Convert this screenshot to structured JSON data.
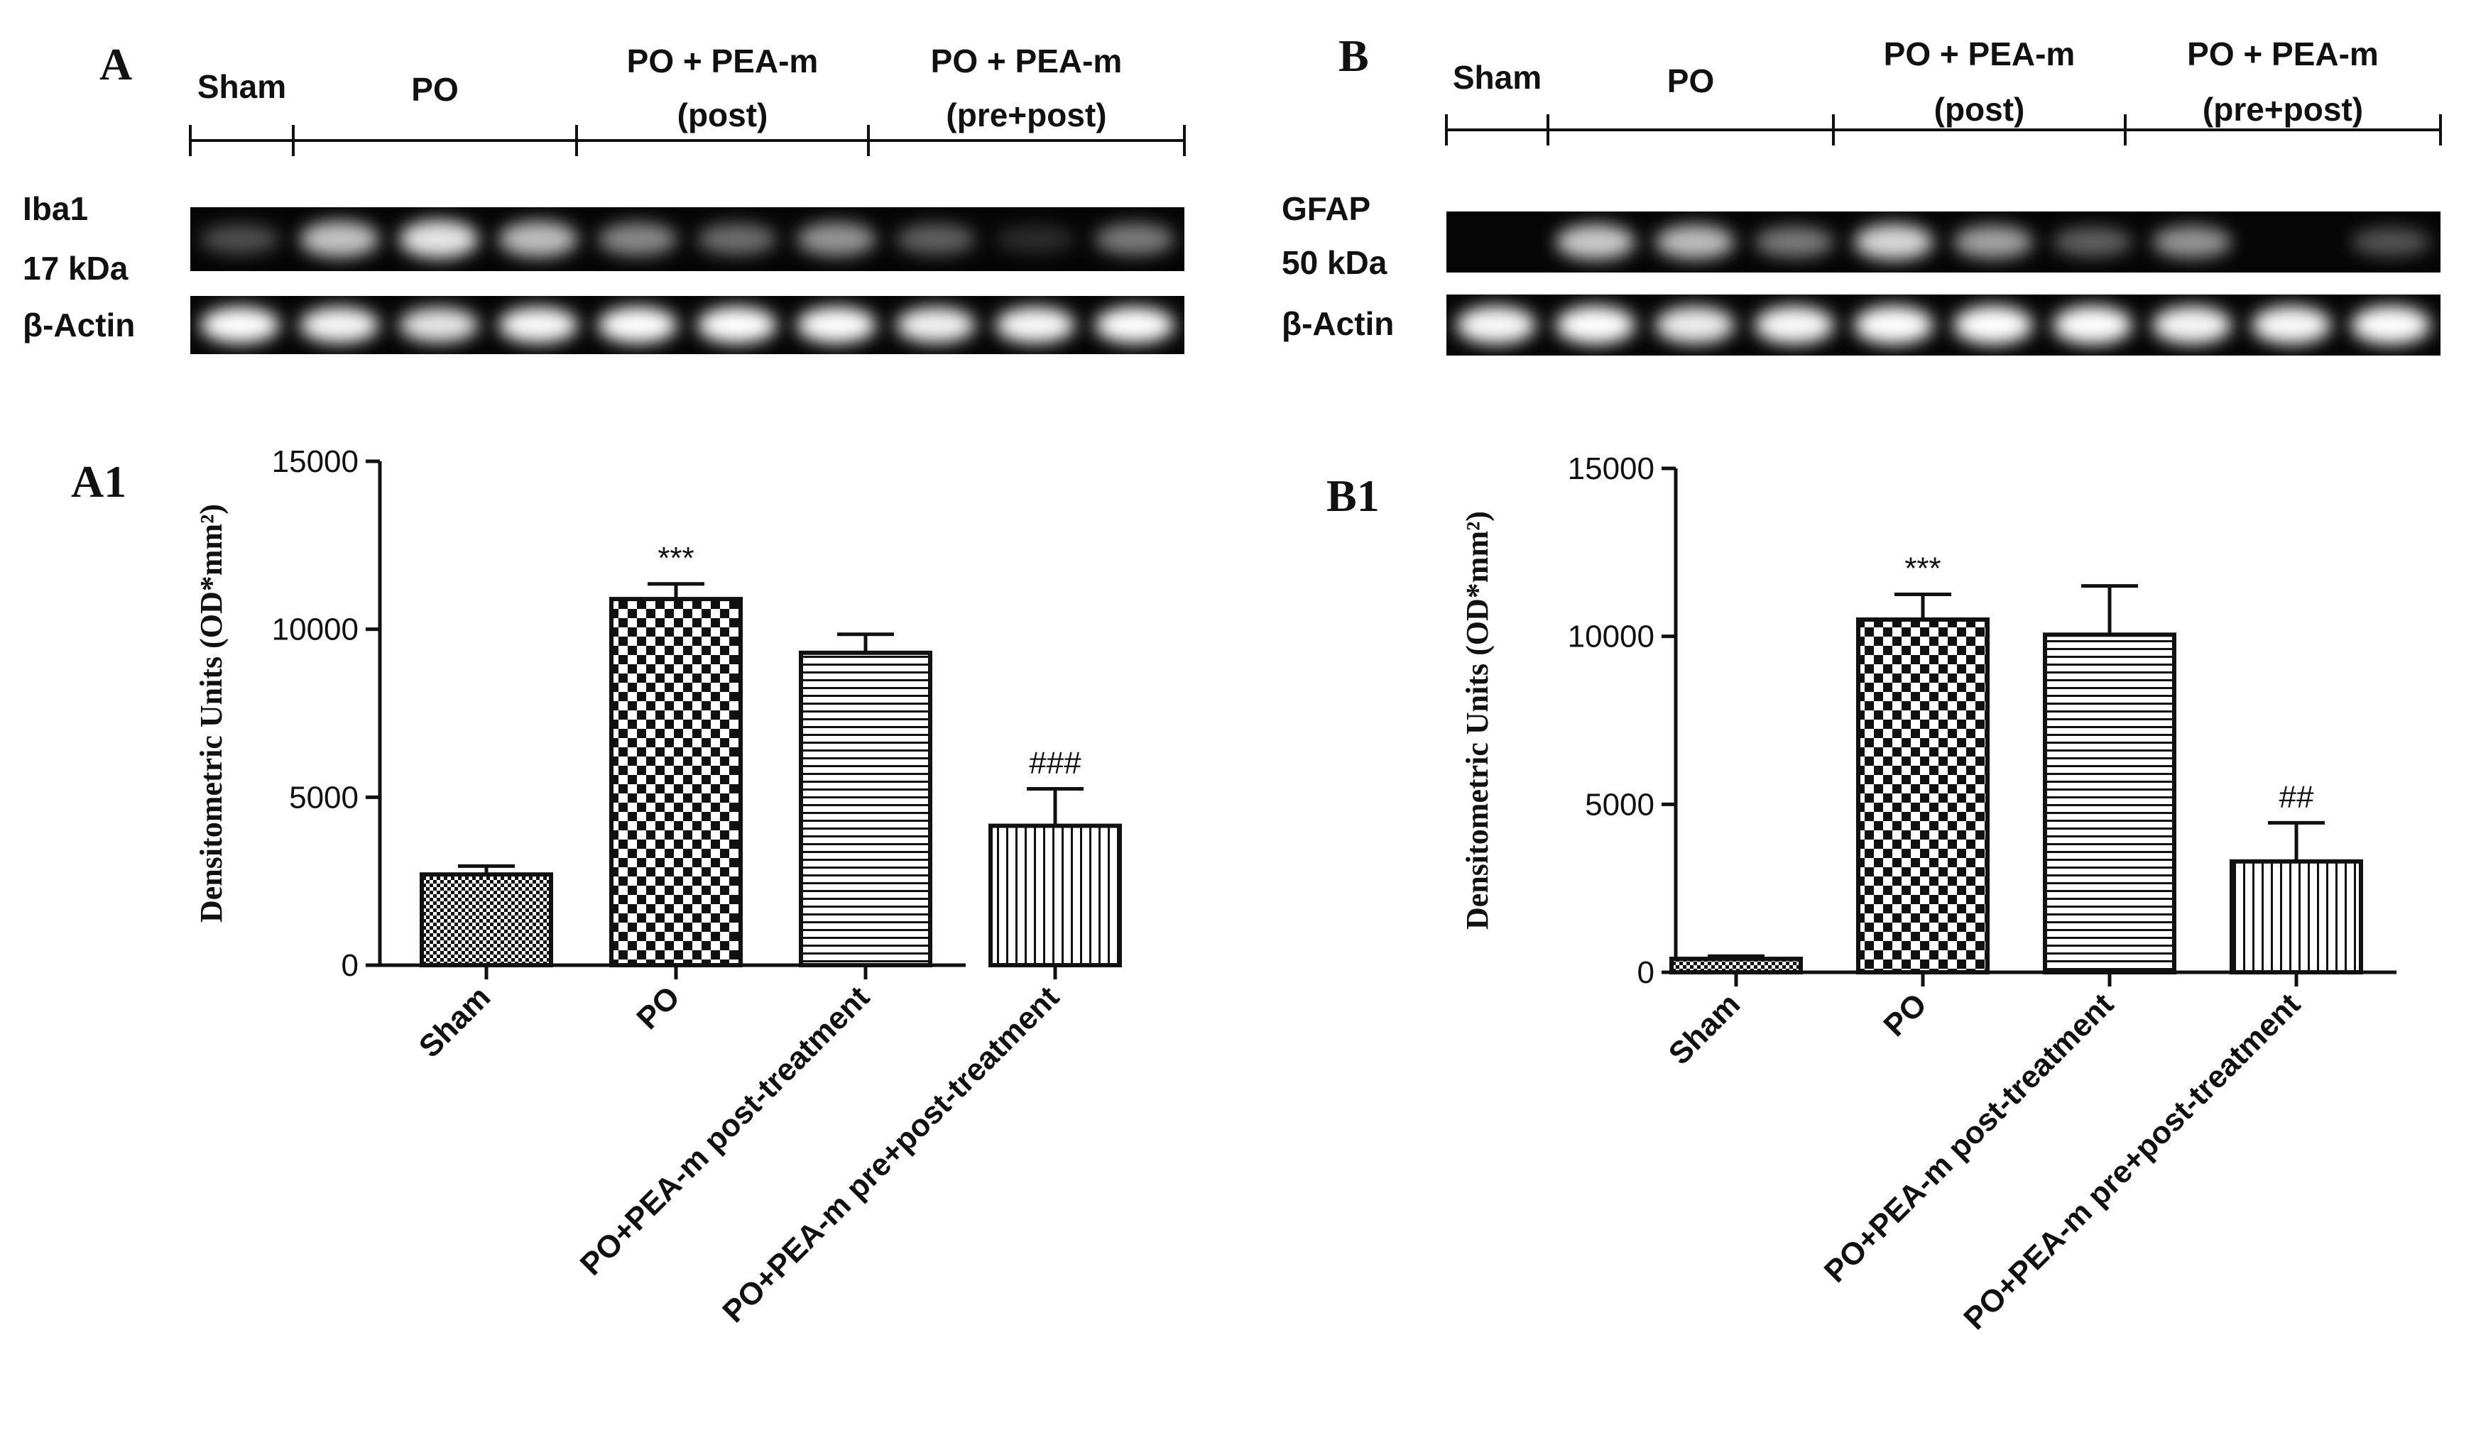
{
  "colors": {
    "ink": "#111111",
    "blot_bg": "#050505",
    "band": "#ffffff",
    "page_bg": "#ffffff"
  },
  "panels": [
    {
      "letter": "A",
      "groups": [
        "Sham",
        "PO",
        "PO + PEA-m\n(post)",
        "PO + PEA-m\n(pre+post)"
      ],
      "blots": [
        {
          "label": "Iba1\n17 kDa",
          "intensities": [
            0.28,
            0.72,
            0.85,
            0.7,
            0.5,
            0.4,
            0.55,
            0.35,
            0.15,
            0.45
          ]
        },
        {
          "label": "β-Actin",
          "intensities": [
            0.95,
            0.92,
            0.85,
            0.93,
            0.95,
            0.97,
            0.95,
            0.9,
            0.93,
            0.95
          ]
        }
      ]
    },
    {
      "letter": "B",
      "groups": [
        "Sham",
        "PO",
        "PO + PEA-m\n(post)",
        "PO + PEA-m\n(pre+post)"
      ],
      "blots": [
        {
          "label": "GFAP\n50 kDa",
          "intensities": [
            0.0,
            0.75,
            0.7,
            0.45,
            0.8,
            0.6,
            0.35,
            0.55,
            0.0,
            0.3
          ]
        },
        {
          "label": "β-Actin",
          "intensities": [
            0.93,
            0.95,
            0.88,
            0.93,
            0.95,
            0.97,
            0.95,
            0.92,
            0.93,
            0.95
          ]
        }
      ]
    }
  ],
  "chart_data": [
    {
      "type": "bar",
      "panel": "A1",
      "ylabel": "Densitometric Units (OD*mm²)",
      "ylim": [
        0,
        15000
      ],
      "yticks": [
        0,
        5000,
        10000,
        15000
      ],
      "categories": [
        "Sham",
        "PO",
        "PO+PEA-m post-treatment",
        "PO+PEA-m pre+post-treatment"
      ],
      "values": [
        2700,
        10900,
        9300,
        4150
      ],
      "errors": [
        250,
        450,
        550,
        1100
      ],
      "patterns": [
        "fine-check",
        "check",
        "hstripe",
        "vstripe"
      ],
      "annotations": [
        "",
        "***",
        "",
        "###"
      ]
    },
    {
      "type": "bar",
      "panel": "B1",
      "ylabel": "Densitometric Units (OD*mm²)",
      "ylim": [
        0,
        15000
      ],
      "yticks": [
        0,
        5000,
        10000,
        15000
      ],
      "categories": [
        "Sham",
        "PO",
        "PO+PEA-m post-treatment",
        "PO+PEA-m pre+post-treatment"
      ],
      "values": [
        400,
        10500,
        10050,
        3300
      ],
      "errors": [
        80,
        750,
        1450,
        1150
      ],
      "patterns": [
        "fine-check",
        "check",
        "hstripe",
        "vstripe"
      ],
      "annotations": [
        "",
        "***",
        "",
        "##"
      ]
    }
  ]
}
